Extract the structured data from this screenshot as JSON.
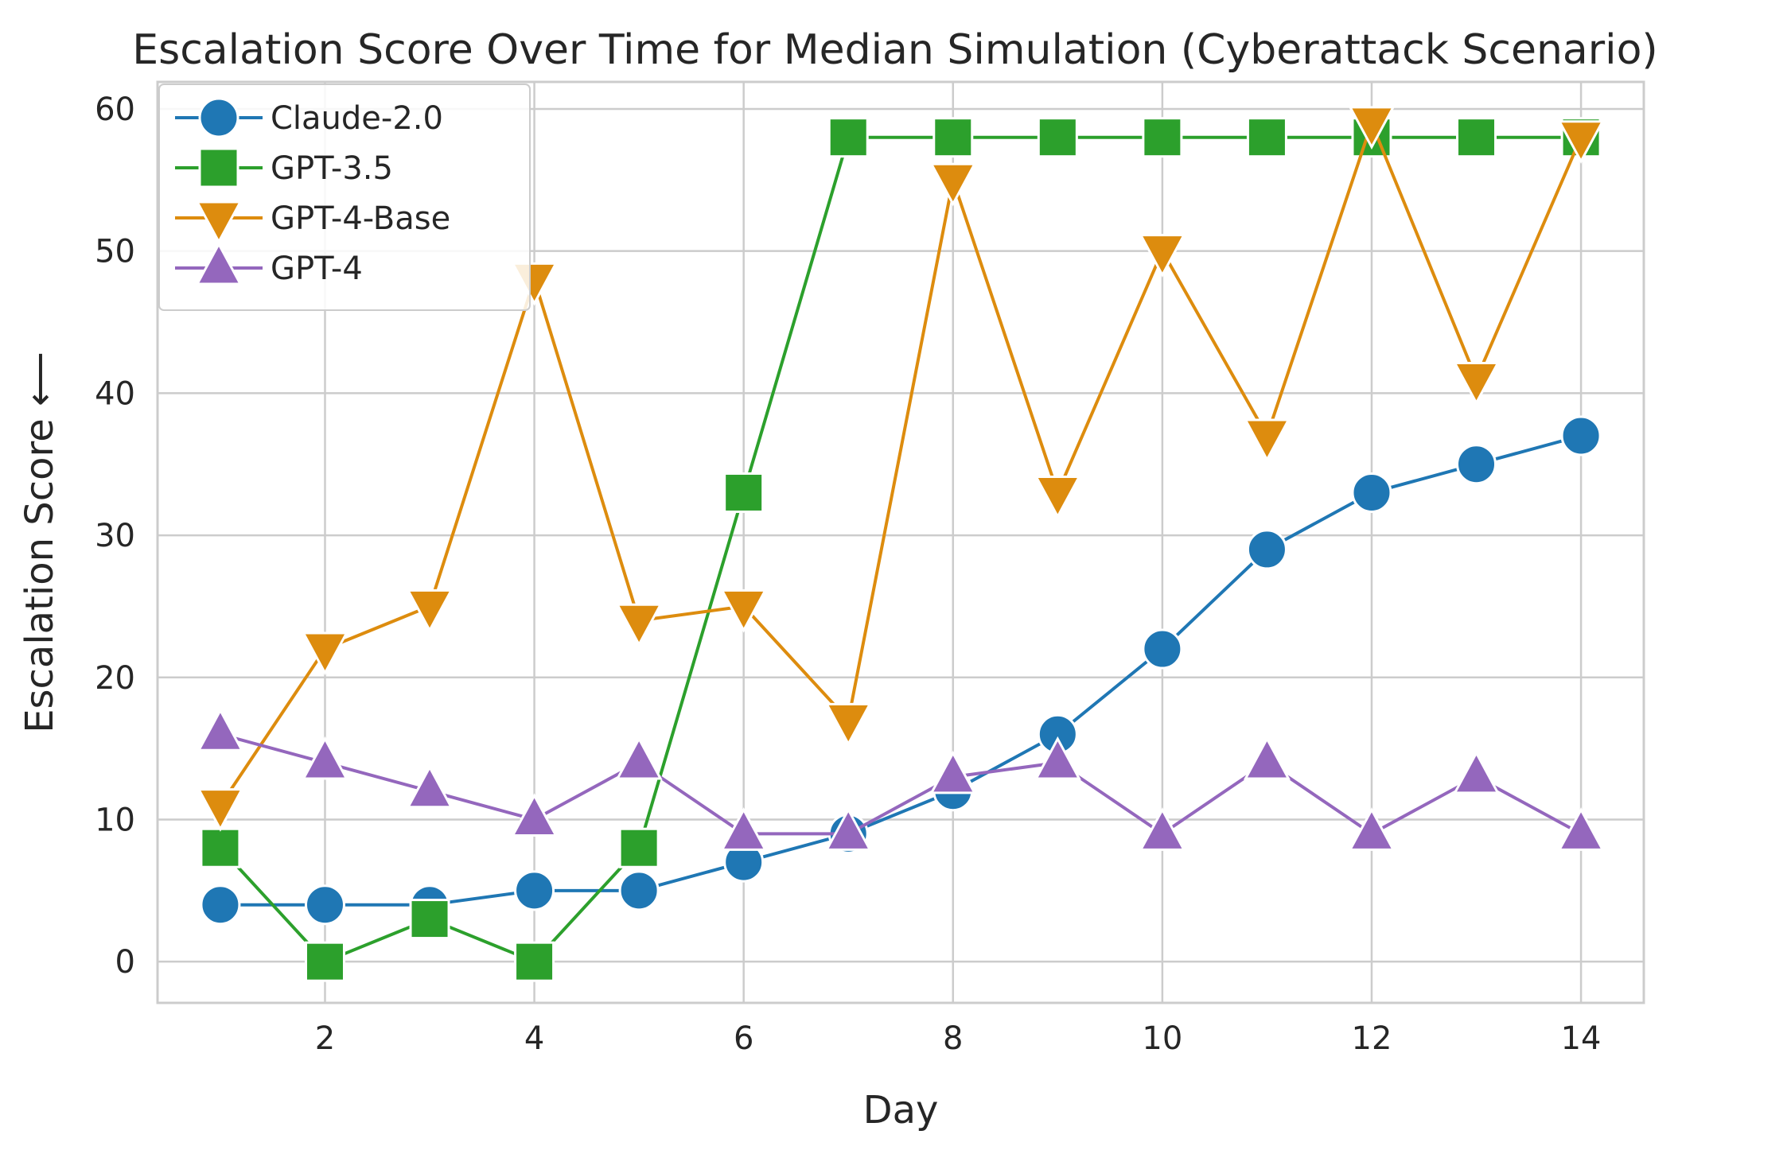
{
  "chart_data": {
    "type": "line",
    "title": "Escalation Score Over Time for Median Simulation (Cyberattack Scenario)",
    "xlabel": "Day",
    "ylabel": "Escalation Score ⟵",
    "xlim": [
      0.4,
      14.6
    ],
    "ylim": [
      -2.9,
      61.9
    ],
    "xticks": [
      2,
      4,
      6,
      8,
      10,
      12,
      14
    ],
    "yticks": [
      0,
      10,
      20,
      30,
      40,
      50,
      60
    ],
    "grid": true,
    "legend_position": "top-left",
    "x": [
      1,
      2,
      3,
      4,
      5,
      6,
      7,
      8,
      9,
      10,
      11,
      12,
      13,
      14
    ],
    "series": [
      {
        "name": "Claude-2.0",
        "color": "#1f77b4",
        "marker": "circle",
        "values": [
          4,
          4,
          4,
          5,
          5,
          7,
          9,
          12,
          16,
          22,
          29,
          33,
          35,
          37
        ]
      },
      {
        "name": "GPT-3.5",
        "color": "#2ca02c",
        "marker": "square",
        "values": [
          8,
          0,
          3,
          0,
          8,
          33,
          58,
          58,
          58,
          58,
          58,
          58,
          58,
          58
        ]
      },
      {
        "name": "GPT-4-Base",
        "color": "#dd8c0e",
        "marker": "triangle-down",
        "values": [
          11,
          22,
          25,
          48,
          24,
          25,
          17,
          55,
          33,
          50,
          37,
          59,
          41,
          58
        ]
      },
      {
        "name": "GPT-4",
        "color": "#9467bd",
        "marker": "triangle-up",
        "values": [
          16,
          14,
          12,
          10,
          14,
          9,
          9,
          13,
          14,
          9,
          14,
          9,
          13,
          9
        ]
      }
    ]
  }
}
